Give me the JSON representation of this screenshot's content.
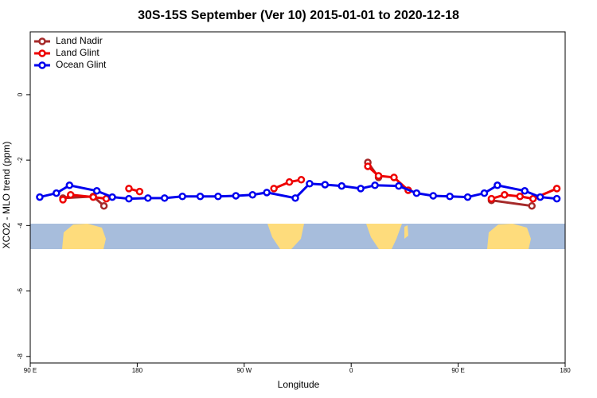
{
  "chart_data": {
    "type": "line",
    "title": "30S-15S September (Ver 10)   2015-01-01 to 2020-12-18",
    "xlabel": "Longitude",
    "ylabel": "XCO2 - MLO trend (ppm)",
    "xlim": [
      90,
      540
    ],
    "xticks": [
      {
        "value": 90,
        "label": "90 E"
      },
      180,
      {
        "value": 270,
        "label": "90 W"
      },
      {
        "value": 360,
        "label": "0"
      },
      {
        "value": 450,
        "label": "90 E"
      },
      {
        "value": 540,
        "label": "180"
      }
    ],
    "ylim": [
      -8.2,
      1.92
    ],
    "yticks": [
      0,
      -2,
      -4,
      -6,
      -8
    ],
    "legend": "top-left",
    "series": [
      {
        "name": "Land Nadir",
        "color": "#a52a2a",
        "x": [
          117.5,
          143,
          152,
          null,
          374,
          383,
          null,
          478,
          512
        ],
        "values": [
          -3.16,
          -3.11,
          -3.4,
          null,
          -2.07,
          -2.53,
          null,
          -3.23,
          -3.4
        ]
      },
      {
        "name": "Land Glint",
        "color": "#ee0000",
        "x": [
          117.5,
          124,
          143,
          154,
          null,
          173,
          182,
          null,
          295,
          308,
          318,
          null,
          374,
          383,
          396,
          408,
          null,
          478,
          489,
          502,
          513,
          533
        ],
        "values": [
          -3.21,
          -3.06,
          -3.13,
          -3.18,
          null,
          -2.87,
          -2.96,
          null,
          -2.87,
          -2.67,
          -2.6,
          null,
          -2.19,
          -2.48,
          -2.53,
          -2.92,
          null,
          -3.18,
          -3.06,
          -3.11,
          -3.18,
          -2.87
        ]
      },
      {
        "name": "Ocean Glint",
        "color": "#0000ee",
        "x": [
          98,
          112,
          123,
          146,
          159,
          173,
          189,
          203,
          218,
          233,
          248,
          263,
          277,
          289,
          313,
          325,
          338,
          352,
          368,
          380,
          400,
          415,
          429,
          443,
          458,
          472,
          483,
          506,
          519,
          533
        ],
        "values": [
          -3.13,
          -3.01,
          -2.77,
          -2.94,
          -3.13,
          -3.18,
          -3.16,
          -3.16,
          -3.11,
          -3.11,
          -3.11,
          -3.09,
          -3.06,
          -2.99,
          -3.16,
          -2.72,
          -2.75,
          -2.79,
          -2.87,
          -2.77,
          -2.79,
          -3.01,
          -3.09,
          -3.11,
          -3.13,
          -3.01,
          -2.77,
          -2.94,
          -3.13,
          -3.18
        ]
      }
    ]
  }
}
